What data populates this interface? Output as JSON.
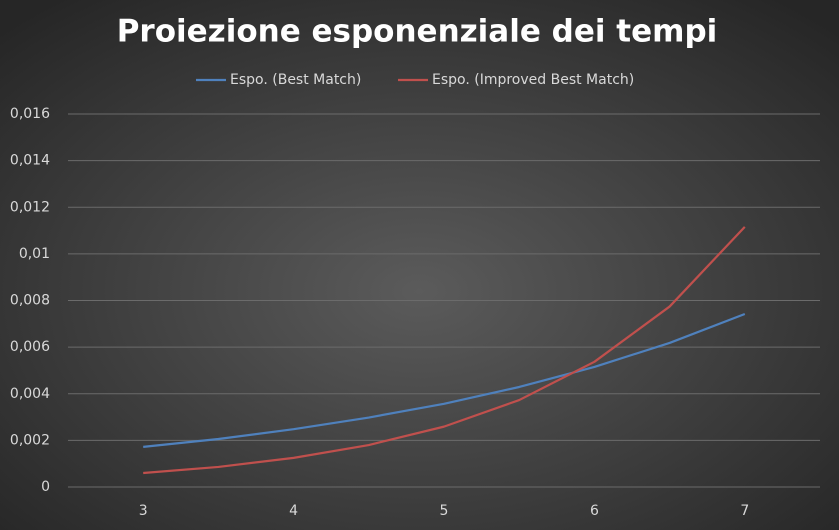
{
  "chart_data": {
    "type": "line",
    "title": "Proiezione esponenziale dei tempi",
    "x": [
      3,
      3.5,
      4,
      4.5,
      5,
      5.5,
      6,
      6.5,
      7
    ],
    "series": [
      {
        "name": "Espo. (Best Match)",
        "color": "#4f81bd",
        "values": [
          0.00172,
          0.00206,
          0.00248,
          0.00298,
          0.00357,
          0.00429,
          0.00515,
          0.00618,
          0.00742
        ]
      },
      {
        "name": "Espo. (Improved Best Match)",
        "color": "#c0504d",
        "values": [
          0.0006,
          0.00086,
          0.00125,
          0.0018,
          0.00259,
          0.00373,
          0.00537,
          0.00774,
          0.01116
        ]
      }
    ],
    "xlim": [
      2.5,
      7.5
    ],
    "xticks": [
      3,
      4,
      5,
      6,
      7
    ],
    "ylim": [
      0,
      0.016
    ],
    "yticks": [
      0,
      {
        "value": 0.002,
        "label": "0,002"
      },
      {
        "value": 0.004,
        "label": "0,004"
      },
      {
        "value": 0.006,
        "label": "0,006"
      },
      {
        "value": 0.008,
        "label": "0,008"
      },
      {
        "value": 0.01,
        "label": "0,01"
      },
      {
        "value": 0.012,
        "label": "0,012"
      },
      {
        "value": 0.014,
        "label": "0,014"
      },
      {
        "value": 0.016,
        "label": "0,016"
      }
    ],
    "grid": true,
    "legend": "top"
  }
}
